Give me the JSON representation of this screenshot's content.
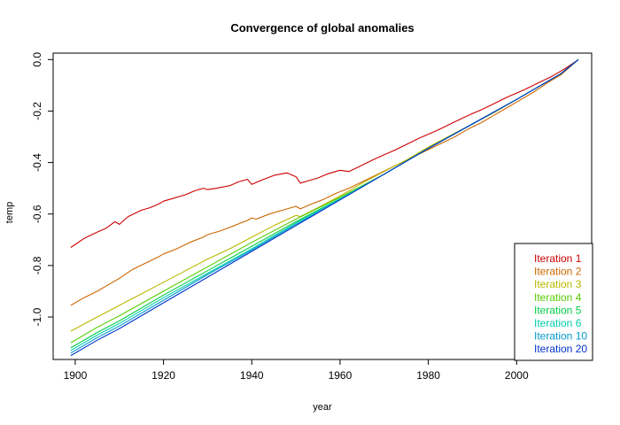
{
  "chart_data": {
    "type": "line",
    "title": "Convergence of global anomalies",
    "xlabel": "year",
    "ylabel": "temp",
    "xlim": [
      1895,
      2017
    ],
    "ylim": [
      -1.165,
      0.025
    ],
    "xticks": [
      1900,
      1920,
      1940,
      1960,
      1980,
      2000
    ],
    "yticks": [
      0.0,
      -0.2,
      -0.4,
      -0.6,
      -0.8,
      -1.0
    ],
    "grid": false,
    "legend_position": "bottom-right",
    "series": [
      {
        "name": "Iteration 1",
        "color": "#cc0000",
        "x": [
          1899,
          1902,
          1905,
          1907,
          1909,
          1910,
          1912,
          1915,
          1917,
          1919,
          1920,
          1922,
          1925,
          1927,
          1929,
          1930,
          1932,
          1935,
          1937,
          1939,
          1940,
          1942,
          1945,
          1948,
          1950,
          1951,
          1953,
          1955,
          1957,
          1959,
          1960,
          1962,
          1965,
          1968,
          1970,
          1972,
          1975,
          1978,
          1980,
          1982,
          1985,
          1988,
          1990,
          1992,
          1995,
          1998,
          2000,
          2002,
          2005,
          2008,
          2011,
          2014
        ],
        "y": [
          -0.73,
          -0.695,
          -0.67,
          -0.655,
          -0.63,
          -0.64,
          -0.61,
          -0.585,
          -0.575,
          -0.56,
          -0.55,
          -0.54,
          -0.525,
          -0.51,
          -0.5,
          -0.505,
          -0.5,
          -0.49,
          -0.475,
          -0.465,
          -0.485,
          -0.47,
          -0.45,
          -0.44,
          -0.455,
          -0.48,
          -0.47,
          -0.46,
          -0.445,
          -0.435,
          -0.43,
          -0.435,
          -0.41,
          -0.385,
          -0.37,
          -0.355,
          -0.33,
          -0.305,
          -0.29,
          -0.275,
          -0.25,
          -0.225,
          -0.21,
          -0.195,
          -0.17,
          -0.145,
          -0.13,
          -0.115,
          -0.09,
          -0.065,
          -0.035,
          0.0
        ]
      },
      {
        "name": "Iteration 2",
        "color": "#cc6600",
        "x": [
          1899,
          1902,
          1905,
          1908,
          1910,
          1913,
          1916,
          1919,
          1920,
          1923,
          1926,
          1929,
          1930,
          1933,
          1936,
          1939,
          1940,
          1941,
          1944,
          1947,
          1950,
          1951,
          1953,
          1956,
          1959,
          1962,
          1965,
          1968,
          1971,
          1974,
          1977,
          1980,
          1983,
          1986,
          1989,
          1992,
          1995,
          1998,
          2001,
          2004,
          2007,
          2010,
          2014
        ],
        "y": [
          -0.955,
          -0.925,
          -0.9,
          -0.87,
          -0.85,
          -0.815,
          -0.79,
          -0.765,
          -0.755,
          -0.735,
          -0.71,
          -0.69,
          -0.68,
          -0.665,
          -0.645,
          -0.625,
          -0.615,
          -0.62,
          -0.6,
          -0.585,
          -0.57,
          -0.58,
          -0.565,
          -0.545,
          -0.52,
          -0.5,
          -0.475,
          -0.45,
          -0.425,
          -0.4,
          -0.375,
          -0.35,
          -0.325,
          -0.3,
          -0.27,
          -0.245,
          -0.215,
          -0.185,
          -0.155,
          -0.125,
          -0.09,
          -0.06,
          0.0
        ]
      },
      {
        "name": "Iteration 3",
        "color": "#b8b800",
        "x": [
          1899,
          1905,
          1910,
          1915,
          1920,
          1925,
          1930,
          1935,
          1940,
          1945,
          1950,
          1951,
          1955,
          1960,
          1965,
          1970,
          1975,
          1980,
          1985,
          1990,
          1995,
          2000,
          2005,
          2010,
          2014
        ],
        "y": [
          -1.055,
          -1.0,
          -0.955,
          -0.91,
          -0.865,
          -0.82,
          -0.775,
          -0.735,
          -0.69,
          -0.645,
          -0.605,
          -0.61,
          -0.575,
          -0.53,
          -0.48,
          -0.435,
          -0.39,
          -0.34,
          -0.295,
          -0.25,
          -0.205,
          -0.155,
          -0.105,
          -0.055,
          0.0
        ]
      },
      {
        "name": "Iteration 4",
        "color": "#55cc00",
        "x": [
          1899,
          1905,
          1910,
          1920,
          1930,
          1940,
          1950,
          1960,
          1970,
          1980,
          1990,
          2000,
          2010,
          2014
        ],
        "y": [
          -1.1,
          -1.04,
          -0.995,
          -0.9,
          -0.805,
          -0.71,
          -0.62,
          -0.535,
          -0.445,
          -0.345,
          -0.25,
          -0.155,
          -0.055,
          0.0
        ]
      },
      {
        "name": "Iteration 5",
        "color": "#00cc44",
        "x": [
          1899,
          1905,
          1910,
          1920,
          1930,
          1940,
          1950,
          1960,
          1970,
          1980,
          1990,
          2000,
          2010,
          2014
        ],
        "y": [
          -1.12,
          -1.06,
          -1.015,
          -0.915,
          -0.82,
          -0.725,
          -0.63,
          -0.54,
          -0.445,
          -0.345,
          -0.25,
          -0.155,
          -0.055,
          0.0
        ]
      },
      {
        "name": "Iteration 6",
        "color": "#00ccaa",
        "x": [
          1899,
          1905,
          1910,
          1920,
          1930,
          1940,
          1950,
          1960,
          1970,
          1980,
          1990,
          2000,
          2010,
          2014
        ],
        "y": [
          -1.13,
          -1.07,
          -1.025,
          -0.925,
          -0.83,
          -0.735,
          -0.635,
          -0.54,
          -0.445,
          -0.345,
          -0.25,
          -0.155,
          -0.055,
          0.0
        ]
      },
      {
        "name": "Iteration 10",
        "color": "#0099cc",
        "x": [
          1899,
          1905,
          1910,
          1920,
          1930,
          1940,
          1950,
          1960,
          1970,
          1980,
          1990,
          2000,
          2010,
          2014
        ],
        "y": [
          -1.14,
          -1.08,
          -1.035,
          -0.935,
          -0.835,
          -0.74,
          -0.64,
          -0.545,
          -0.445,
          -0.345,
          -0.25,
          -0.155,
          -0.055,
          0.0
        ]
      },
      {
        "name": "Iteration 20",
        "color": "#0033cc",
        "x": [
          1899,
          1905,
          1910,
          1920,
          1930,
          1940,
          1950,
          1960,
          1970,
          1980,
          1990,
          2000,
          2010,
          2014
        ],
        "y": [
          -1.15,
          -1.09,
          -1.045,
          -0.945,
          -0.845,
          -0.745,
          -0.645,
          -0.545,
          -0.445,
          -0.345,
          -0.25,
          -0.155,
          -0.055,
          0.0
        ]
      }
    ]
  }
}
